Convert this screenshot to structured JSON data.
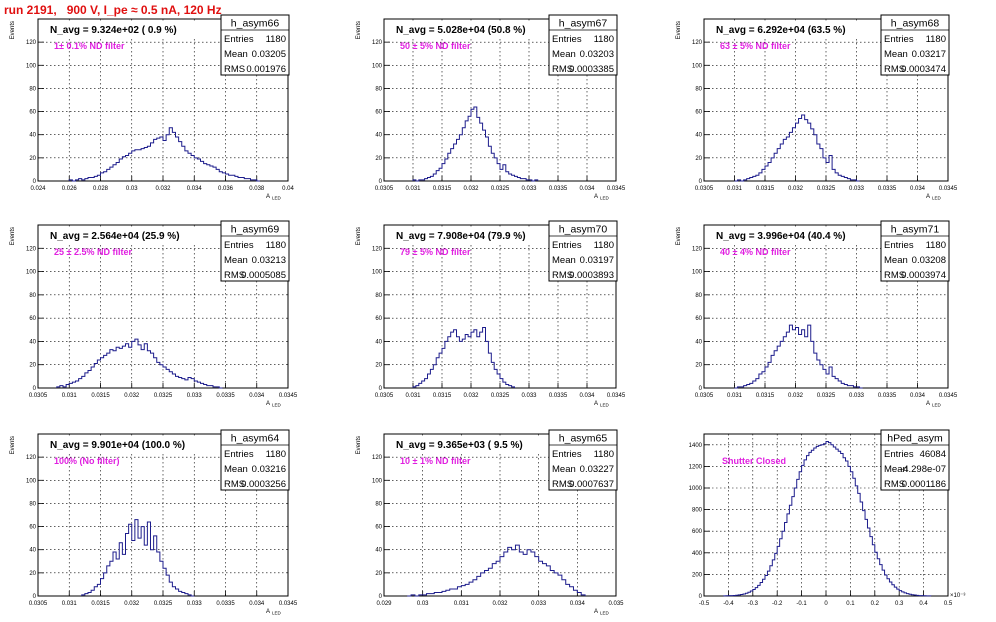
{
  "page": {
    "run_title": "run 2191,   900 V, I_pe ≈ 0.5 nA, 120 Hz"
  },
  "chart_data": [
    {
      "type": "bar",
      "name": "h_asym66",
      "navg": "N_avg = 9.324e+02 ( 0.9 %)",
      "filter": "1± 0.1% ND filter",
      "stats": {
        "entries": "1180",
        "mean": "0.03205",
        "rms": "0.001976"
      },
      "xlabel": "A_LED",
      "ylabel": "Events",
      "xlim": [
        0.024,
        0.04
      ],
      "ylim": [
        0,
        140
      ],
      "xticks": [
        "0.024",
        "0.026",
        "0.028",
        "0.03",
        "0.032",
        "0.034",
        "0.036",
        "0.038",
        "0.04"
      ],
      "yticks": [
        "0",
        "20",
        "40",
        "60",
        "80",
        "100",
        "120"
      ],
      "ystep": 20,
      "x": [
        0.026,
        0.0262,
        0.0264,
        0.0266,
        0.0268,
        0.027,
        0.0272,
        0.0274,
        0.0276,
        0.0278,
        0.028,
        0.0282,
        0.0284,
        0.0286,
        0.0288,
        0.029,
        0.0292,
        0.0294,
        0.0296,
        0.0298,
        0.03,
        0.0302,
        0.0304,
        0.0306,
        0.0308,
        0.031,
        0.0312,
        0.0314,
        0.0316,
        0.0318,
        0.032,
        0.0322,
        0.0324,
        0.0326,
        0.0328,
        0.033,
        0.0332,
        0.0334,
        0.0336,
        0.0338,
        0.034,
        0.0342,
        0.0344,
        0.0346,
        0.0348,
        0.035,
        0.0352,
        0.0354,
        0.0356,
        0.0358,
        0.036,
        0.0362,
        0.0364,
        0.0366,
        0.0368,
        0.037,
        0.0372,
        0.0374,
        0.0376,
        0.0378,
        0.038
      ],
      "values": [
        1,
        0,
        1,
        2,
        1,
        2,
        3,
        3,
        4,
        5,
        7,
        8,
        10,
        12,
        14,
        16,
        19,
        21,
        22,
        24,
        26,
        27,
        27,
        28,
        29,
        30,
        33,
        36,
        37,
        38,
        35,
        40,
        46,
        42,
        38,
        34,
        30,
        26,
        24,
        22,
        20,
        19,
        17,
        15,
        14,
        13,
        12,
        10,
        8,
        7,
        6,
        5,
        5,
        4,
        3,
        3,
        2,
        2,
        1,
        1,
        0
      ]
    },
    {
      "type": "bar",
      "name": "h_asym67",
      "navg": "N_avg = 5.028e+04 (50.8 %)",
      "filter": "50 ± 5% ND filter",
      "stats": {
        "entries": "1180",
        "mean": "0.03203",
        "rms": "0.0003385"
      },
      "xlabel": "A_LED",
      "ylabel": "Events",
      "xlim": [
        0.0305,
        0.0345
      ],
      "ylim": [
        0,
        140
      ],
      "xticks": [
        "0.0305",
        "0.031",
        "0.0315",
        "0.032",
        "0.0325",
        "0.033",
        "0.0335",
        "0.034",
        "0.0345"
      ],
      "yticks": [
        "0",
        "20",
        "40",
        "60",
        "80",
        "100",
        "120"
      ],
      "ystep": 20,
      "x": [
        0.031,
        0.03105,
        0.0311,
        0.03115,
        0.0312,
        0.03125,
        0.0313,
        0.03135,
        0.0314,
        0.03145,
        0.0315,
        0.03155,
        0.0316,
        0.03165,
        0.0317,
        0.03175,
        0.0318,
        0.03185,
        0.0319,
        0.03195,
        0.032,
        0.03205,
        0.0321,
        0.03215,
        0.0322,
        0.03225,
        0.0323,
        0.03235,
        0.0324,
        0.03245,
        0.0325,
        0.03255,
        0.0326,
        0.03265,
        0.0327,
        0.03275,
        0.0328,
        0.03285,
        0.0329,
        0.03295,
        0.033,
        0.03305,
        0.0331
      ],
      "values": [
        1,
        0,
        1,
        1,
        2,
        3,
        4,
        6,
        9,
        11,
        15,
        19,
        24,
        28,
        32,
        36,
        40,
        46,
        52,
        56,
        62,
        64,
        55,
        50,
        44,
        38,
        30,
        24,
        20,
        15,
        10,
        14,
        8,
        6,
        5,
        4,
        3,
        2,
        2,
        1,
        1,
        0,
        1
      ]
    },
    {
      "type": "bar",
      "name": "h_asym68",
      "navg": "N_avg = 6.292e+04 (63.5 %)",
      "filter": "63 ± 5% ND filter",
      "stats": {
        "entries": "1180",
        "mean": "0.03217",
        "rms": "0.0003474"
      },
      "xlabel": "A_LED",
      "ylabel": "Events",
      "xlim": [
        0.0305,
        0.0345
      ],
      "ylim": [
        0,
        140
      ],
      "xticks": [
        "0.0305",
        "0.031",
        "0.0315",
        "0.032",
        "0.0325",
        "0.033",
        "0.0335",
        "0.034",
        "0.0345"
      ],
      "yticks": [
        "0",
        "20",
        "40",
        "60",
        "80",
        "100",
        "120"
      ],
      "ystep": 20,
      "x": [
        0.031,
        0.03105,
        0.0311,
        0.03115,
        0.0312,
        0.03125,
        0.0313,
        0.03135,
        0.0314,
        0.03145,
        0.0315,
        0.03155,
        0.0316,
        0.03165,
        0.0317,
        0.03175,
        0.0318,
        0.03185,
        0.0319,
        0.03195,
        0.032,
        0.03205,
        0.0321,
        0.03215,
        0.0322,
        0.03225,
        0.0323,
        0.03235,
        0.0324,
        0.03245,
        0.0325,
        0.03255,
        0.0326,
        0.03265,
        0.0327,
        0.03275,
        0.0328,
        0.03285,
        0.0329,
        0.03295,
        0.033
      ],
      "values": [
        0,
        1,
        0,
        1,
        2,
        3,
        4,
        5,
        7,
        10,
        13,
        16,
        20,
        24,
        28,
        32,
        36,
        38,
        42,
        46,
        50,
        54,
        57,
        53,
        50,
        45,
        40,
        32,
        28,
        20,
        16,
        22,
        10,
        7,
        5,
        4,
        3,
        2,
        1,
        1,
        0
      ]
    },
    {
      "type": "bar",
      "name": "h_asym69",
      "navg": "N_avg = 2.564e+04 (25.9 %)",
      "filter": "25 ± 2.5% ND filter",
      "stats": {
        "entries": "1180",
        "mean": "0.03213",
        "rms": "0.0005085"
      },
      "xlabel": "A_LED",
      "ylabel": "Events",
      "xlim": [
        0.0305,
        0.0345
      ],
      "ylim": [
        0,
        140
      ],
      "xticks": [
        "0.0305",
        "0.031",
        "0.0315",
        "0.032",
        "0.0325",
        "0.033",
        "0.0335",
        "0.034",
        "0.0345"
      ],
      "yticks": [
        "0",
        "20",
        "40",
        "60",
        "80",
        "100",
        "120"
      ],
      "ystep": 20,
      "x": [
        0.0308,
        0.03085,
        0.0309,
        0.03095,
        0.031,
        0.03105,
        0.0311,
        0.03115,
        0.0312,
        0.03125,
        0.0313,
        0.03135,
        0.0314,
        0.03145,
        0.0315,
        0.03155,
        0.0316,
        0.03165,
        0.0317,
        0.03175,
        0.0318,
        0.03185,
        0.0319,
        0.03195,
        0.032,
        0.03205,
        0.0321,
        0.03215,
        0.0322,
        0.03225,
        0.0323,
        0.03235,
        0.0324,
        0.03245,
        0.0325,
        0.03255,
        0.0326,
        0.03265,
        0.0327,
        0.03275,
        0.0328,
        0.03285,
        0.0329,
        0.03295,
        0.033,
        0.03305,
        0.0331,
        0.03315,
        0.0332,
        0.03325,
        0.0333,
        0.03335,
        0.0334
      ],
      "values": [
        1,
        2,
        1,
        3,
        4,
        5,
        6,
        8,
        10,
        13,
        15,
        18,
        21,
        24,
        26,
        28,
        30,
        33,
        32,
        35,
        34,
        36,
        38,
        35,
        40,
        42,
        37,
        33,
        38,
        32,
        30,
        26,
        22,
        20,
        18,
        16,
        14,
        12,
        10,
        9,
        8,
        7,
        9,
        8,
        6,
        5,
        4,
        3,
        2,
        2,
        1,
        1,
        0
      ]
    },
    {
      "type": "bar",
      "name": "h_asym70",
      "navg": "N_avg = 7.908e+04 (79.9 %)",
      "filter": "79 ± 5% ND filter",
      "stats": {
        "entries": "1180",
        "mean": "0.03197",
        "rms": "0.0003893"
      },
      "xlabel": "A_LED",
      "ylabel": "Events",
      "xlim": [
        0.0305,
        0.0345
      ],
      "ylim": [
        0,
        140
      ],
      "xticks": [
        "0.0305",
        "0.031",
        "0.0315",
        "0.032",
        "0.0325",
        "0.033",
        "0.0335",
        "0.034",
        "0.0345"
      ],
      "yticks": [
        "0",
        "20",
        "40",
        "60",
        "80",
        "100",
        "120"
      ],
      "ystep": 20,
      "x": [
        0.031,
        0.03105,
        0.0311,
        0.03115,
        0.0312,
        0.03125,
        0.0313,
        0.03135,
        0.0314,
        0.03145,
        0.0315,
        0.03155,
        0.0316,
        0.03165,
        0.0317,
        0.03175,
        0.0318,
        0.03185,
        0.0319,
        0.03195,
        0.032,
        0.03205,
        0.0321,
        0.03215,
        0.0322,
        0.03225,
        0.0323,
        0.03235,
        0.0324,
        0.03245,
        0.0325,
        0.03255,
        0.0326,
        0.03265,
        0.0327
      ],
      "values": [
        1,
        2,
        4,
        6,
        8,
        12,
        16,
        20,
        26,
        30,
        34,
        40,
        44,
        48,
        50,
        44,
        40,
        42,
        46,
        44,
        48,
        50,
        44,
        48,
        52,
        40,
        30,
        22,
        16,
        12,
        8,
        5,
        3,
        2,
        1
      ]
    },
    {
      "type": "bar",
      "name": "h_asym71",
      "navg": "N_avg = 3.996e+04 (40.4 %)",
      "filter": "40 ± 4% ND filter",
      "stats": {
        "entries": "1180",
        "mean": "0.03208",
        "rms": "0.0003974"
      },
      "xlabel": "A_LED",
      "ylabel": "Events",
      "xlim": [
        0.0305,
        0.0345
      ],
      "ylim": [
        0,
        140
      ],
      "xticks": [
        "0.0305",
        "0.031",
        "0.0315",
        "0.032",
        "0.0325",
        "0.033",
        "0.0335",
        "0.034",
        "0.0345"
      ],
      "yticks": [
        "0",
        "20",
        "40",
        "60",
        "80",
        "100",
        "120"
      ],
      "ystep": 20,
      "x": [
        0.031,
        0.03105,
        0.0311,
        0.03115,
        0.0312,
        0.03125,
        0.0313,
        0.03135,
        0.0314,
        0.03145,
        0.0315,
        0.03155,
        0.0316,
        0.03165,
        0.0317,
        0.03175,
        0.0318,
        0.03185,
        0.0319,
        0.03195,
        0.032,
        0.03205,
        0.0321,
        0.03215,
        0.0322,
        0.03225,
        0.0323,
        0.03235,
        0.0324,
        0.03245,
        0.0325,
        0.03255,
        0.0326,
        0.03265,
        0.0327,
        0.03275,
        0.0328,
        0.03285,
        0.0329,
        0.03295,
        0.033,
        0.03305
      ],
      "values": [
        0,
        1,
        1,
        2,
        3,
        4,
        6,
        8,
        12,
        14,
        18,
        22,
        28,
        32,
        36,
        40,
        44,
        48,
        54,
        50,
        52,
        46,
        50,
        44,
        54,
        40,
        30,
        24,
        20,
        16,
        12,
        18,
        10,
        8,
        6,
        4,
        3,
        2,
        2,
        1,
        1,
        0
      ]
    },
    {
      "type": "bar",
      "name": "h_asym64",
      "navg": "N_avg = 9.901e+04 (100.0 %)",
      "filter": "100% (No filter)",
      "stats": {
        "entries": "1180",
        "mean": "0.03216",
        "rms": "0.0003256"
      },
      "xlabel": "A_LED",
      "ylabel": "Events",
      "xlim": [
        0.0305,
        0.0345
      ],
      "ylim": [
        0,
        140
      ],
      "xticks": [
        "0.0305",
        "0.031",
        "0.0315",
        "0.032",
        "0.0325",
        "0.033",
        "0.0335",
        "0.034",
        "0.0345"
      ],
      "yticks": [
        "0",
        "20",
        "40",
        "60",
        "80",
        "100",
        "120"
      ],
      "ystep": 20,
      "x": [
        0.0312,
        0.03125,
        0.0313,
        0.03135,
        0.0314,
        0.03145,
        0.0315,
        0.03155,
        0.0316,
        0.03165,
        0.0317,
        0.03175,
        0.0318,
        0.03185,
        0.0319,
        0.03195,
        0.032,
        0.03205,
        0.0321,
        0.03215,
        0.0322,
        0.03225,
        0.0323,
        0.03235,
        0.0324,
        0.03245,
        0.0325,
        0.03255,
        0.0326,
        0.03265,
        0.0327,
        0.03275,
        0.0328,
        0.03285,
        0.0329,
        0.03295
      ],
      "values": [
        1,
        2,
        3,
        5,
        8,
        10,
        15,
        20,
        26,
        30,
        38,
        32,
        46,
        36,
        54,
        62,
        48,
        66,
        50,
        60,
        44,
        64,
        40,
        52,
        38,
        30,
        24,
        18,
        12,
        8,
        6,
        4,
        3,
        2,
        1,
        0
      ]
    },
    {
      "type": "bar",
      "name": "h_asym65",
      "navg": "N_avg = 9.365e+03 ( 9.5 %)",
      "filter": "10 ± 1% ND filter",
      "stats": {
        "entries": "1180",
        "mean": "0.03227",
        "rms": "0.0007637"
      },
      "xlabel": "A_LED",
      "ylabel": "Events",
      "xlim": [
        0.029,
        0.035
      ],
      "ylim": [
        0,
        140
      ],
      "xticks": [
        "0.029",
        "0.03",
        "0.031",
        "0.032",
        "0.033",
        "0.034",
        "0.035"
      ],
      "yticks": [
        "0",
        "20",
        "40",
        "60",
        "80",
        "100",
        "120"
      ],
      "ystep": 20,
      "x": [
        0.0296,
        0.0297,
        0.0298,
        0.0299,
        0.03,
        0.0301,
        0.0302,
        0.0303,
        0.0304,
        0.0305,
        0.0306,
        0.0307,
        0.0308,
        0.0309,
        0.031,
        0.0311,
        0.0312,
        0.0313,
        0.0314,
        0.0315,
        0.0316,
        0.0317,
        0.0318,
        0.0319,
        0.032,
        0.0321,
        0.0322,
        0.0323,
        0.0324,
        0.0325,
        0.0326,
        0.0327,
        0.0328,
        0.0329,
        0.033,
        0.0331,
        0.0332,
        0.0333,
        0.0334,
        0.0335,
        0.0336,
        0.0337,
        0.0338,
        0.0339,
        0.034,
        0.0341
      ],
      "values": [
        0,
        1,
        0,
        1,
        1,
        2,
        2,
        3,
        3,
        4,
        5,
        6,
        6,
        8,
        9,
        10,
        12,
        14,
        17,
        20,
        22,
        24,
        28,
        30,
        34,
        38,
        42,
        40,
        44,
        38,
        36,
        40,
        38,
        34,
        30,
        28,
        26,
        22,
        20,
        18,
        14,
        10,
        8,
        5,
        3,
        1
      ]
    },
    {
      "type": "bar",
      "name": "hPed_asym",
      "navg": "",
      "filter": "Shutter Closed",
      "stats": {
        "entries": "46084",
        "mean": "-4.298e-07",
        "rms": "0.0001186"
      },
      "xlabel": "",
      "ylabel": "",
      "exponent": "×10⁻³",
      "xlim": [
        -0.5,
        0.5
      ],
      "ylim": [
        0,
        1500
      ],
      "xticks": [
        "-0.5",
        "-0.4",
        "-0.3",
        "-0.2",
        "-0.1",
        "0",
        "0.1",
        "0.2",
        "0.3",
        "0.4",
        "0.5"
      ],
      "yticks": [
        "0",
        "200",
        "400",
        "600",
        "800",
        "1000",
        "1200",
        "1400"
      ],
      "ystep": 200,
      "x": [
        -0.42,
        -0.41,
        -0.4,
        -0.39,
        -0.38,
        -0.37,
        -0.36,
        -0.35,
        -0.34,
        -0.33,
        -0.32,
        -0.31,
        -0.3,
        -0.29,
        -0.28,
        -0.27,
        -0.26,
        -0.25,
        -0.24,
        -0.23,
        -0.22,
        -0.21,
        -0.2,
        -0.19,
        -0.18,
        -0.17,
        -0.16,
        -0.15,
        -0.14,
        -0.13,
        -0.12,
        -0.11,
        -0.1,
        -0.09,
        -0.08,
        -0.07,
        -0.06,
        -0.05,
        -0.04,
        -0.03,
        -0.02,
        -0.01,
        0.0,
        0.01,
        0.02,
        0.03,
        0.04,
        0.05,
        0.06,
        0.07,
        0.08,
        0.09,
        0.1,
        0.11,
        0.12,
        0.13,
        0.14,
        0.15,
        0.16,
        0.17,
        0.18,
        0.19,
        0.2,
        0.21,
        0.22,
        0.23,
        0.24,
        0.25,
        0.26,
        0.27,
        0.28,
        0.29,
        0.3,
        0.31,
        0.32,
        0.33,
        0.34,
        0.35,
        0.36,
        0.37,
        0.38,
        0.39,
        0.4,
        0.41,
        0.42
      ],
      "values": [
        1,
        2,
        3,
        4,
        5,
        7,
        10,
        14,
        19,
        26,
        35,
        46,
        60,
        78,
        98,
        125,
        155,
        190,
        230,
        280,
        335,
        395,
        460,
        530,
        600,
        680,
        760,
        840,
        920,
        1000,
        1080,
        1150,
        1210,
        1260,
        1300,
        1330,
        1350,
        1370,
        1385,
        1395,
        1400,
        1410,
        1430,
        1420,
        1400,
        1380,
        1360,
        1340,
        1320,
        1280,
        1250,
        1200,
        1150,
        1090,
        1020,
        950,
        870,
        790,
        710,
        630,
        550,
        475,
        405,
        345,
        290,
        240,
        195,
        160,
        130,
        104,
        82,
        64,
        50,
        38,
        29,
        22,
        16,
        12,
        9,
        6,
        4,
        3,
        2,
        1,
        1
      ]
    }
  ]
}
